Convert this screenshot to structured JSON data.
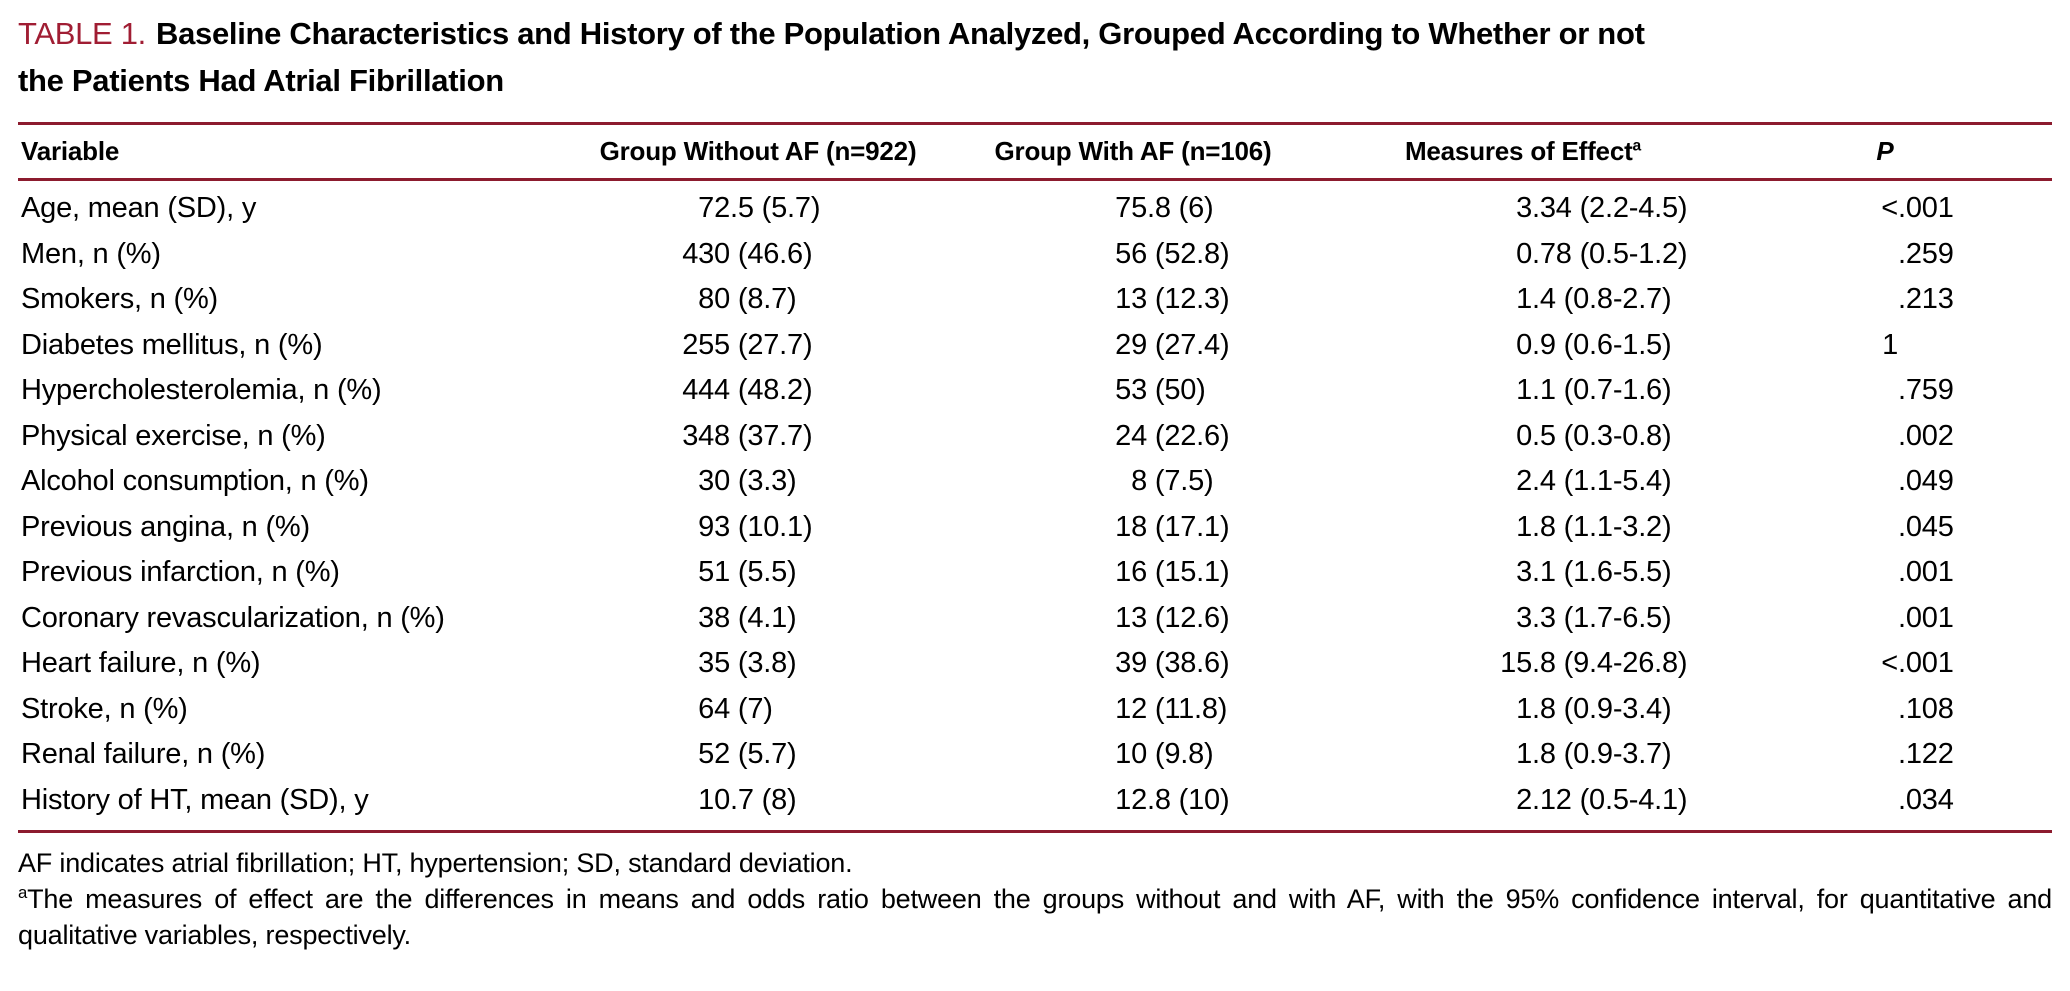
{
  "colors": {
    "accent": "#A01D33",
    "rule": "#8C1B2E",
    "text": "#000000"
  },
  "table": {
    "label": "TABLE 1.",
    "title_lines": [
      "Baseline Characteristics and History of the Population Analyzed, Grouped According to Whether or not",
      "the Patients Had Atrial Fibrillation"
    ],
    "header": {
      "variable": "Variable",
      "without_af": "Group Without AF (n=922)",
      "with_af": "Group With AF (n=106)",
      "effect": "Measures of Effect",
      "effect_superscript": "a",
      "p": "P"
    },
    "rows": [
      {
        "variable": "Age, mean (SD), y",
        "without_af": "72.5 (5.7)",
        "with_af": "75.8 (6)",
        "effect": "3.34 (2.2-4.5)",
        "p": "<.001"
      },
      {
        "variable": "Men, n (%)",
        "without_af": "430 (46.6)",
        "with_af": "56 (52.8)",
        "effect": "0.78 (0.5-1.2)",
        "p": ".259"
      },
      {
        "variable": "Smokers, n (%)",
        "without_af": "80 (8.7)",
        "with_af": "13 (12.3)",
        "effect": "1.4 (0.8-2.7)",
        "p": ".213"
      },
      {
        "variable": "Diabetes mellitus, n (%)",
        "without_af": "255 (27.7)",
        "with_af": "29 (27.4)",
        "effect": "0.9 (0.6-1.5)",
        "p": "1"
      },
      {
        "variable": "Hypercholesterolemia, n (%)",
        "without_af": "444 (48.2)",
        "with_af": "53 (50)",
        "effect": "1.1 (0.7-1.6)",
        "p": ".759"
      },
      {
        "variable": "Physical exercise, n (%)",
        "without_af": "348 (37.7)",
        "with_af": "24 (22.6)",
        "effect": "0.5 (0.3-0.8)",
        "p": ".002"
      },
      {
        "variable": "Alcohol consumption, n (%)",
        "without_af": "30 (3.3)",
        "with_af": "8 (7.5)",
        "effect": "2.4 (1.1-5.4)",
        "p": ".049"
      },
      {
        "variable": "Previous angina, n (%)",
        "without_af": "93 (10.1)",
        "with_af": "18 (17.1)",
        "effect": "1.8 (1.1-3.2)",
        "p": ".045"
      },
      {
        "variable": "Previous infarction, n (%)",
        "without_af": "51 (5.5)",
        "with_af": "16 (15.1)",
        "effect": "3.1 (1.6-5.5)",
        "p": ".001"
      },
      {
        "variable": "Coronary revascularization, n (%)",
        "without_af": "38 (4.1)",
        "with_af": "13 (12.6)",
        "effect": "3.3 (1.7-6.5)",
        "p": ".001"
      },
      {
        "variable": "Heart failure, n (%)",
        "without_af": "35 (3.8)",
        "with_af": "39 (38.6)",
        "effect": "15.8 (9.4-26.8)",
        "p": "<.001"
      },
      {
        "variable": "Stroke, n (%)",
        "without_af": "64 (7)",
        "with_af": "12 (11.8)",
        "effect": "1.8 (0.9-3.4)",
        "p": ".108"
      },
      {
        "variable": "Renal failure, n (%)",
        "without_af": "52 (5.7)",
        "with_af": "10 (9.8)",
        "effect": "1.8 (0.9-3.7)",
        "p": ".122"
      },
      {
        "variable": "History of HT, mean (SD), y",
        "without_af": "10.7 (8)",
        "with_af": "12.8 (10)",
        "effect": "2.12 (0.5-4.1)",
        "p": ".034"
      }
    ],
    "footnotes": {
      "abbreviations": "AF indicates atrial fibrillation; HT, hypertension; SD, standard deviation.",
      "effect_superscript": "a",
      "effect_note": "The measures of effect are the differences in means and odds ratio between the groups without and with AF, with the 95% confidence interval, for quantitative and qualitative variables, respectively."
    }
  }
}
